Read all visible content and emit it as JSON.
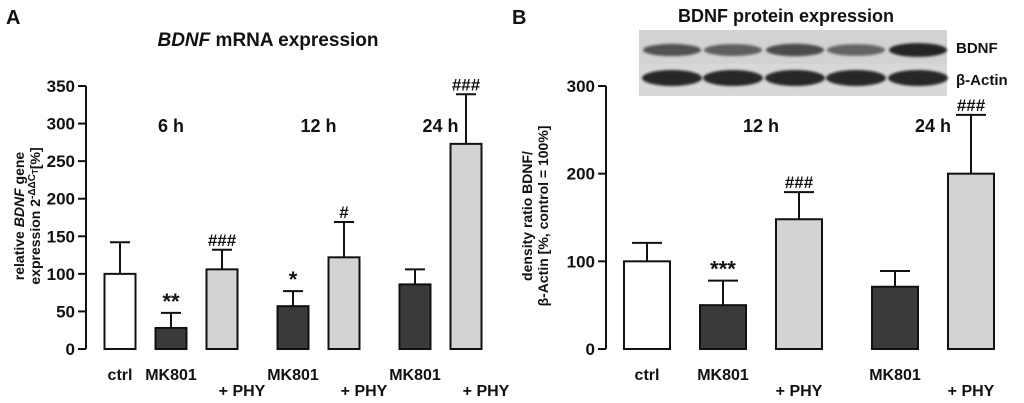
{
  "colors": {
    "ctrl_fill": "#ffffff",
    "mk801_fill": "#3a3a3a",
    "phy_fill": "#d3d3d3",
    "axis": "#111111",
    "blot_background": "#d2d2d2",
    "blot_band": "#1e1e1e"
  },
  "chart_data": [
    {
      "type": "bar",
      "panel_label": "A",
      "title_italic": "BDNF",
      "title_rest": " mRNA expression",
      "ylabel_line1_pre": "relative ",
      "ylabel_line1_italic": "BDNF",
      "ylabel_line1_post": " gene",
      "ylabel_line2": "expression 2",
      "ylabel_line2_sup": "-ΔΔC",
      "ylabel_line2_sub": "T",
      "ylabel_line2_end": "[%]",
      "ylim": [
        0,
        350
      ],
      "yticks": [
        0,
        50,
        100,
        150,
        200,
        250,
        300,
        350
      ],
      "grid": false,
      "groups": [
        {
          "label": "6 h",
          "bars": [
            0,
            1,
            2
          ]
        },
        {
          "label": "12 h",
          "bars": [
            3,
            4
          ]
        },
        {
          "label": "24 h",
          "bars": [
            5,
            6
          ]
        }
      ],
      "bars": [
        {
          "category": "ctrl",
          "treatment": "ctrl",
          "value": 100,
          "error": 42,
          "annotation": ""
        },
        {
          "category": "MK801",
          "treatment": "mk801",
          "value": 28,
          "error": 20,
          "annotation": "**"
        },
        {
          "category": "+ PHY",
          "treatment": "phy",
          "value": 106,
          "error": 26,
          "annotation": "###"
        },
        {
          "category": "MK801",
          "treatment": "mk801",
          "value": 57,
          "error": 20,
          "annotation": "*"
        },
        {
          "category": "+ PHY",
          "treatment": "phy",
          "value": 122,
          "error": 47,
          "annotation": "#"
        },
        {
          "category": "MK801",
          "treatment": "mk801",
          "value": 86,
          "error": 20,
          "annotation": ""
        },
        {
          "category": "+ PHY",
          "treatment": "phy",
          "value": 273,
          "error": 66,
          "annotation": "###"
        }
      ]
    },
    {
      "type": "bar",
      "panel_label": "B",
      "title": "BDNF protein expression",
      "ylabel_line1": "density ratio BDNF/",
      "ylabel_line2": "β-Actin [%, control = 100%]",
      "ylim": [
        0,
        300
      ],
      "yticks": [
        0,
        100,
        200,
        300
      ],
      "grid": false,
      "blot_labels": [
        "BDNF",
        "β-Actin"
      ],
      "blot_bdnf_intensity": [
        0.55,
        0.45,
        0.62,
        0.4,
        0.95
      ],
      "blot_actin_intensity": [
        0.95,
        0.95,
        0.95,
        0.95,
        0.95
      ],
      "groups": [
        {
          "label": "12 h",
          "bars": [
            1,
            2
          ]
        },
        {
          "label": "24 h",
          "bars": [
            3,
            4
          ]
        }
      ],
      "bars": [
        {
          "category": "ctrl",
          "treatment": "ctrl",
          "value": 100,
          "error": 21,
          "annotation": ""
        },
        {
          "category": "MK801",
          "treatment": "mk801",
          "value": 50,
          "error": 28,
          "annotation": "***"
        },
        {
          "category": "+ PHY",
          "treatment": "phy",
          "value": 148,
          "error": 31,
          "annotation": "###"
        },
        {
          "category": "MK801",
          "treatment": "mk801",
          "value": 71,
          "error": 18,
          "annotation": ""
        },
        {
          "category": "+ PHY",
          "treatment": "phy",
          "value": 200,
          "error": 67,
          "annotation": "###"
        }
      ]
    }
  ]
}
